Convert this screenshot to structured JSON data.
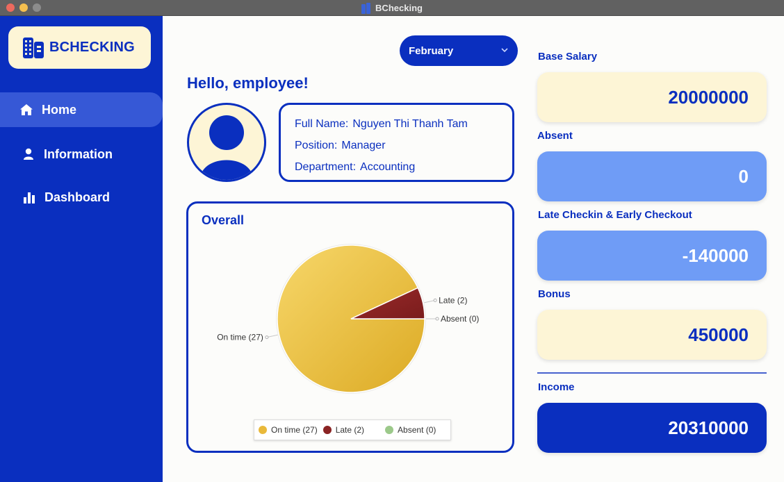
{
  "window": {
    "title": "BChecking"
  },
  "sidebar": {
    "logo_text": "BCHECKING",
    "items": [
      {
        "label": "Home",
        "icon": "home-icon",
        "active": true
      },
      {
        "label": "Information",
        "icon": "user-icon",
        "active": false
      },
      {
        "label": "Dashboard",
        "icon": "bar-chart-icon",
        "active": false
      }
    ]
  },
  "header": {
    "month": "February",
    "greeting": "Hello, employee!"
  },
  "profile": {
    "full_name_label": "Full Name:",
    "full_name": "Nguyen Thi Thanh Tam",
    "position_label": "Position:",
    "position": "Manager",
    "department_label": "Department:",
    "department": "Accounting"
  },
  "overall": {
    "title": "Overall"
  },
  "chart_data": {
    "type": "pie",
    "title": "Overall",
    "slices": [
      {
        "label": "On time (27)",
        "legend": "On time (27)",
        "value": 27,
        "color": "#e9b93a"
      },
      {
        "label": "Late (2)",
        "legend": "Late (2)",
        "value": 2,
        "color": "#8a2323"
      },
      {
        "label": "Absent (0)",
        "legend": "Absent (0)",
        "value": 0,
        "color": "#9cc98a"
      }
    ],
    "legend_position": "bottom"
  },
  "summary": {
    "base_salary_label": "Base Salary",
    "base_salary": "20000000",
    "absent_label": "Absent",
    "absent": "0",
    "late_label": "Late Checkin & Early Checkout",
    "late": "-140000",
    "bonus_label": "Bonus",
    "bonus": "450000",
    "income_label": "Income",
    "income": "20310000"
  },
  "colors": {
    "primary": "#0a2fbf",
    "cream": "#fdf5d6",
    "light_blue": "#6f9cf6"
  }
}
